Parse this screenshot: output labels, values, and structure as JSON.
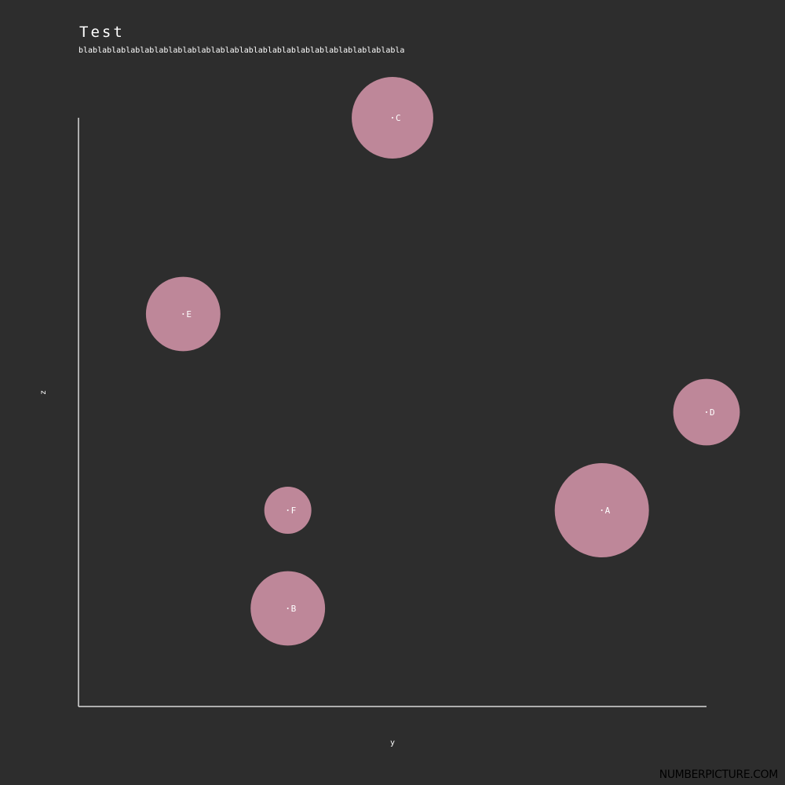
{
  "title": "Test",
  "subtitle": "blablablablablablablablablablablablablablablablablablablablablablabla",
  "watermark": "NUMBERPICTURE.COM",
  "colors": {
    "background": "#2d2d2d",
    "bubble": "#be8799",
    "axis": "#d9d9d9",
    "text": "#ffffff"
  },
  "chart_data": {
    "type": "scatter",
    "title": "Test",
    "subtitle": "blablablablablablablablablablablablablablablablablablablablablablabla",
    "xlabel": "y",
    "ylabel": "z",
    "xlim": [
      0,
      6
    ],
    "ylim": [
      0,
      6
    ],
    "grid": false,
    "points": [
      {
        "label": "A",
        "x": 5.0,
        "y": 2.0,
        "size": 4
      },
      {
        "label": "B",
        "x": 2.0,
        "y": 1.0,
        "size": 2.5
      },
      {
        "label": "C",
        "x": 3.0,
        "y": 6.0,
        "size": 3
      },
      {
        "label": "D",
        "x": 6.0,
        "y": 3.0,
        "size": 2
      },
      {
        "label": "E",
        "x": 1.0,
        "y": 4.0,
        "size": 2.5
      },
      {
        "label": "F",
        "x": 2.0,
        "y": 2.0,
        "size": 1
      }
    ]
  }
}
